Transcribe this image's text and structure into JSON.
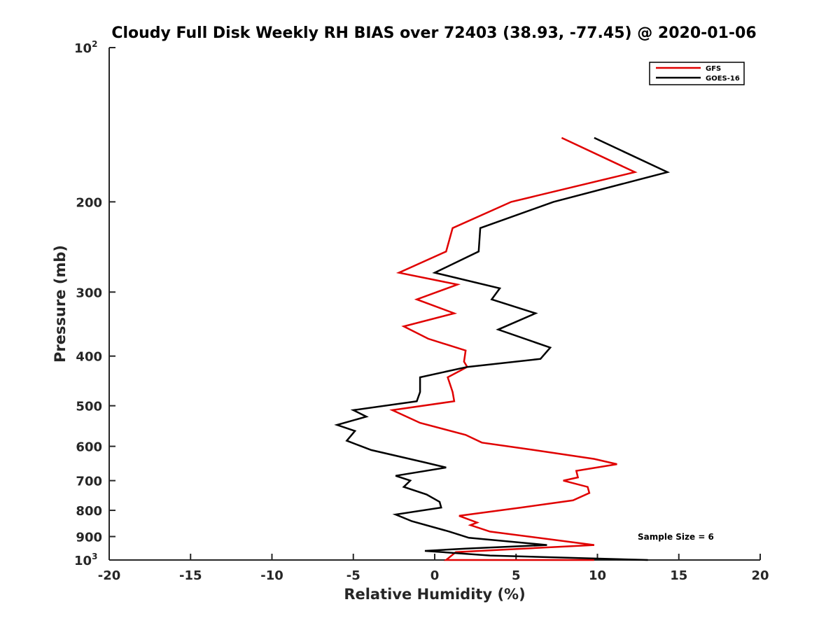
{
  "chart_data": {
    "type": "line",
    "title": "Cloudy Full Disk Weekly RH BIAS over 72403 (38.93, -77.45) @ 2020-01-06",
    "xlabel": "Relative Humidity (%)",
    "ylabel": "Pressure (mb)",
    "xlim": [
      -20,
      20
    ],
    "ylim": [
      100,
      1000
    ],
    "y_scale": "log",
    "y_reversed": true,
    "x_ticks": [
      "-20",
      "-15",
      "-10",
      "-5",
      "0",
      "5",
      "10",
      "15",
      "20"
    ],
    "y_ticks": [
      {
        "value": 100,
        "base": "10",
        "exp": "2"
      },
      {
        "value": 200,
        "label": "200"
      },
      {
        "value": 300,
        "label": "300"
      },
      {
        "value": 400,
        "label": "400"
      },
      {
        "value": 500,
        "label": "500"
      },
      {
        "value": 600,
        "label": "600"
      },
      {
        "value": 700,
        "label": "700"
      },
      {
        "value": 800,
        "label": "800"
      },
      {
        "value": 900,
        "label": "900"
      },
      {
        "value": 1000,
        "base": "10",
        "exp": "3"
      }
    ],
    "grid": false,
    "legend_position": "top-right",
    "annotation": "Sample Size = 6",
    "series": [
      {
        "name": "GFS",
        "color": "#e00000",
        "points": [
          [
            7.8,
            150
          ],
          [
            12.3,
            175
          ],
          [
            4.7,
            200
          ],
          [
            1.1,
            225
          ],
          [
            0.7,
            250
          ],
          [
            -2.2,
            275
          ],
          [
            1.4,
            290
          ],
          [
            -1.1,
            310
          ],
          [
            1.2,
            330
          ],
          [
            -1.9,
            350
          ],
          [
            -0.4,
            370
          ],
          [
            1.9,
            390
          ],
          [
            1.8,
            410
          ],
          [
            2.0,
            420
          ],
          [
            0.8,
            440
          ],
          [
            1.1,
            470
          ],
          [
            1.2,
            490
          ],
          [
            -2.6,
            510
          ],
          [
            -0.9,
            540
          ],
          [
            1.9,
            570
          ],
          [
            2.9,
            590
          ],
          [
            6.1,
            610
          ],
          [
            9.8,
            635
          ],
          [
            11.2,
            650
          ],
          [
            8.7,
            670
          ],
          [
            8.8,
            690
          ],
          [
            7.9,
            700
          ],
          [
            9.4,
            720
          ],
          [
            9.5,
            740
          ],
          [
            8.5,
            765
          ],
          [
            5.3,
            790
          ],
          [
            1.5,
            820
          ],
          [
            2.6,
            845
          ],
          [
            2.2,
            855
          ],
          [
            3.4,
            880
          ],
          [
            9.8,
            935
          ],
          [
            1.3,
            965
          ],
          [
            0.7,
            1000
          ],
          [
            9.8,
            1000
          ]
        ]
      },
      {
        "name": "GOES-16",
        "color": "#000000",
        "points": [
          [
            9.8,
            150
          ],
          [
            14.3,
            175
          ],
          [
            7.3,
            200
          ],
          [
            2.8,
            225
          ],
          [
            2.7,
            250
          ],
          [
            0.0,
            275
          ],
          [
            4.0,
            295
          ],
          [
            3.5,
            310
          ],
          [
            6.2,
            330
          ],
          [
            3.9,
            355
          ],
          [
            7.1,
            385
          ],
          [
            6.5,
            405
          ],
          [
            2.0,
            420
          ],
          [
            -0.9,
            440
          ],
          [
            -0.9,
            470
          ],
          [
            -1.1,
            490
          ],
          [
            -5.0,
            510
          ],
          [
            -4.2,
            525
          ],
          [
            -6.0,
            545
          ],
          [
            -4.9,
            560
          ],
          [
            -5.4,
            585
          ],
          [
            -3.9,
            610
          ],
          [
            -0.6,
            645
          ],
          [
            0.7,
            660
          ],
          [
            -2.4,
            685
          ],
          [
            -1.5,
            700
          ],
          [
            -1.9,
            720
          ],
          [
            -0.5,
            745
          ],
          [
            0.3,
            770
          ],
          [
            0.4,
            790
          ],
          [
            -2.4,
            815
          ],
          [
            -1.4,
            840
          ],
          [
            0.6,
            875
          ],
          [
            0.9,
            880
          ],
          [
            2.1,
            905
          ],
          [
            6.9,
            935
          ],
          [
            1.9,
            950
          ],
          [
            -0.6,
            960
          ],
          [
            3.4,
            980
          ],
          [
            13.1,
            1000
          ]
        ]
      }
    ]
  }
}
